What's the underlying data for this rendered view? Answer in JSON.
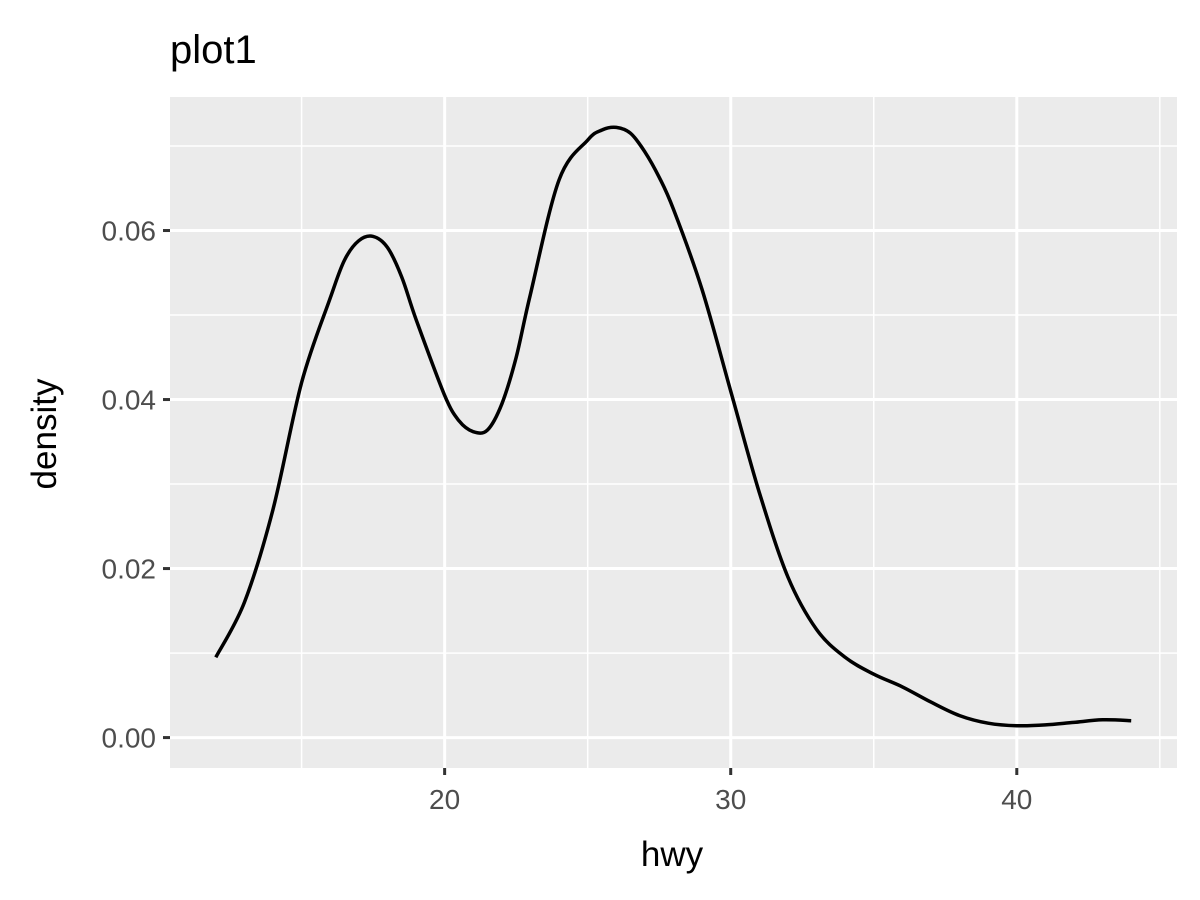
{
  "chart_data": {
    "type": "line",
    "title": "plot1",
    "xlabel": "hwy",
    "ylabel": "density",
    "xlim": [
      10.4,
      45.6
    ],
    "ylim": [
      -0.0036,
      0.0758
    ],
    "x_ticks": [
      20,
      30,
      40
    ],
    "x_tick_labels": [
      "20",
      "30",
      "40"
    ],
    "x_minor_ticks": [
      15,
      25,
      35,
      45
    ],
    "y_ticks": [
      0,
      0.02,
      0.04,
      0.06
    ],
    "y_tick_labels": [
      "0.00",
      "0.02",
      "0.04",
      "0.06"
    ],
    "y_minor_ticks": [
      0.01,
      0.03,
      0.05,
      0.07
    ],
    "grid": true,
    "background": "#ebebeb",
    "grid_color": "#ffffff",
    "line_color": "#000000",
    "series": [
      {
        "x": [
          12,
          13,
          14,
          15,
          16,
          16.5,
          17,
          17.5,
          18,
          18.5,
          19,
          20,
          20.5,
          21,
          21.5,
          22,
          22.5,
          23,
          24,
          25,
          25.5,
          26,
          26.5,
          27,
          27.5,
          28,
          29,
          30,
          31,
          32,
          33,
          34,
          35,
          36,
          37,
          38,
          39,
          40,
          41,
          42,
          43,
          44
        ],
        "y": [
          0.0095,
          0.016,
          0.027,
          0.042,
          0.052,
          0.0565,
          0.0588,
          0.0593,
          0.058,
          0.0545,
          0.0495,
          0.0405,
          0.0375,
          0.0362,
          0.0364,
          0.0395,
          0.045,
          0.0525,
          0.066,
          0.0707,
          0.0719,
          0.0722,
          0.0715,
          0.0693,
          0.0663,
          0.0625,
          0.053,
          0.041,
          0.029,
          0.019,
          0.0128,
          0.0095,
          0.0075,
          0.006,
          0.0042,
          0.0026,
          0.0017,
          0.0014,
          0.0015,
          0.0018,
          0.0021,
          0.002
        ]
      }
    ]
  }
}
